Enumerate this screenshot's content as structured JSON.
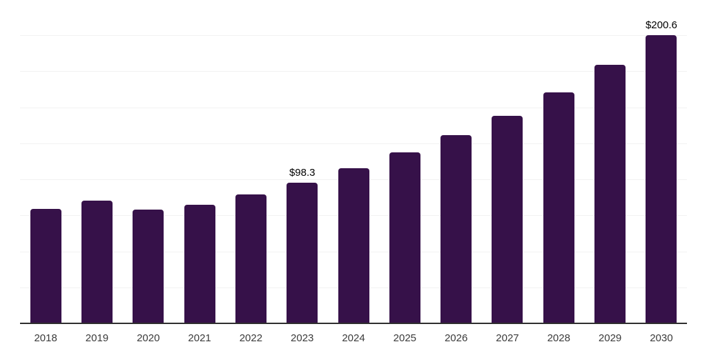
{
  "chart_data": {
    "type": "bar",
    "title": "",
    "categories": [
      "2018",
      "2019",
      "2020",
      "2021",
      "2022",
      "2023",
      "2024",
      "2025",
      "2026",
      "2027",
      "2028",
      "2029",
      "2030"
    ],
    "values": [
      79.9,
      85.8,
      79.4,
      82.9,
      90.0,
      98.3,
      108.1,
      119.0,
      131.0,
      144.8,
      161.0,
      180.0,
      200.6
    ],
    "data_labels": {
      "2023": "$98.3",
      "2030": "$200.6"
    },
    "xlabel": "",
    "ylabel": "",
    "ylim": [
      0,
      225
    ],
    "gridline_step": 25,
    "grid": true,
    "legend": false,
    "colors": {
      "bar": "#361149",
      "axis_line": "#2e2e2e",
      "gridline": "#f2f2f2",
      "data_label": "#000000",
      "tick_label": "#3a3a3a",
      "background": "#ffffff"
    }
  }
}
